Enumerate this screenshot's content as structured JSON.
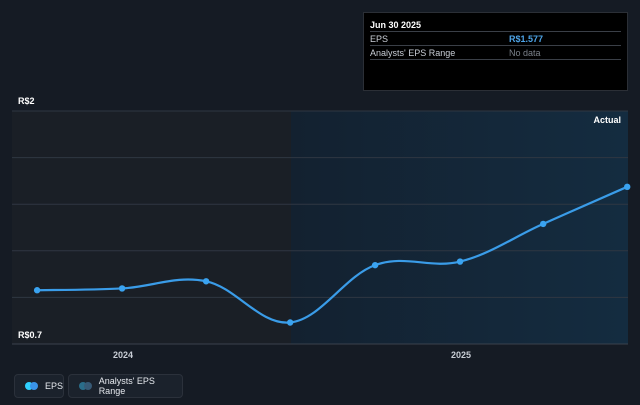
{
  "tooltip": {
    "date": "Jun 30 2025",
    "rows": [
      {
        "label": "EPS",
        "value": "R$1.577"
      },
      {
        "label": "Analysts' EPS Range",
        "value": "No data"
      }
    ]
  },
  "colors": {
    "background": "#151b24",
    "past_region": "#1a1f26",
    "forecast_region": "#13293b",
    "line": "#3a9ce8",
    "grid": "#2f3742"
  },
  "chart_data": {
    "type": "line",
    "y_tick_labels": [
      "R$2",
      "R$0.7"
    ],
    "ylim": [
      0.7,
      2.0
    ],
    "x_tick_labels": [
      "2024",
      "2025"
    ],
    "annotation": "Actual",
    "series": [
      {
        "name": "EPS",
        "points": [
          {
            "x": "2023-09-30",
            "y": 1.0
          },
          {
            "x": "2023-12-31",
            "y": 1.01
          },
          {
            "x": "2024-03-31",
            "y": 1.05
          },
          {
            "x": "2024-06-30",
            "y": 0.82
          },
          {
            "x": "2024-09-30",
            "y": 1.14
          },
          {
            "x": "2024-12-31",
            "y": 1.16
          },
          {
            "x": "2025-03-31",
            "y": 1.37
          },
          {
            "x": "2025-06-30",
            "y": 1.577
          }
        ]
      }
    ],
    "grid": true
  },
  "legend": {
    "items": [
      {
        "label": "EPS"
      },
      {
        "label": "Analysts' EPS Range"
      }
    ]
  }
}
